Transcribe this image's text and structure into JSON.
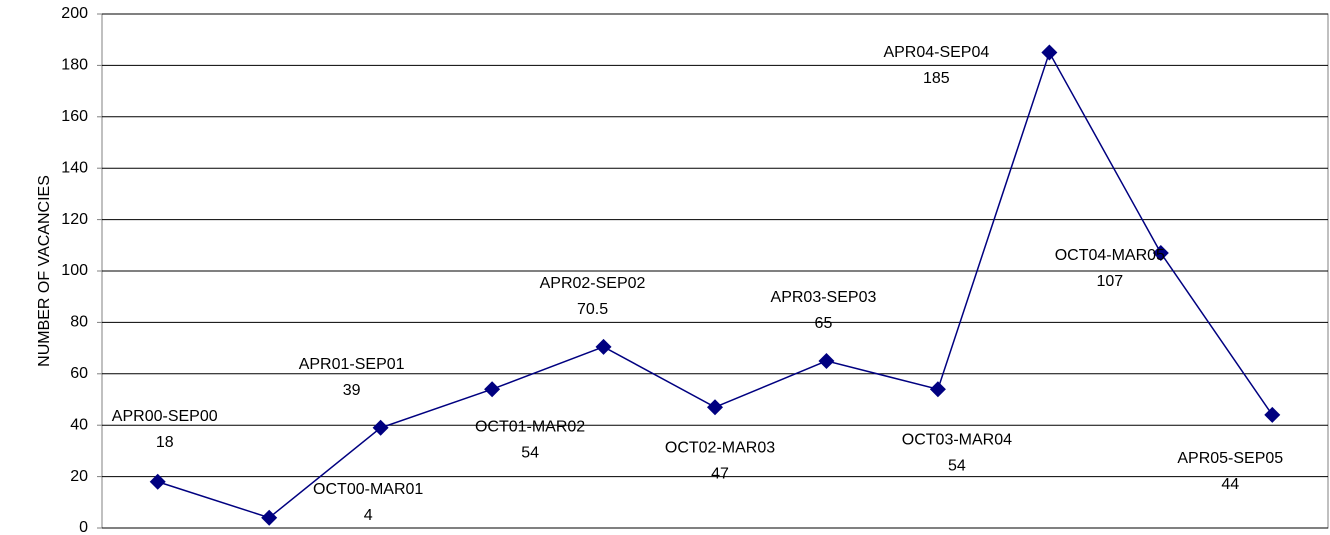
{
  "chart_data": {
    "type": "line",
    "y_label": "NUMBER OF VACANCIES",
    "categories": [
      "APR00-SEP00",
      "OCT00-MAR01",
      "APR01-SEP01",
      "OCT01-MAR02",
      "APR02-SEP02",
      "OCT02-MAR03",
      "APR03-SEP03",
      "OCT03-MAR04",
      "APR04-SEP04",
      "OCT04-MAR05",
      "APR05-SEP05"
    ],
    "values": [
      18,
      4,
      39,
      54,
      70.5,
      47,
      65,
      54,
      185,
      107,
      44
    ],
    "color": "#000080",
    "ylim": [
      0,
      200
    ],
    "yticks": [
      0,
      20,
      40,
      60,
      80,
      100,
      120,
      140,
      160,
      180,
      200
    ],
    "grid": true
  }
}
